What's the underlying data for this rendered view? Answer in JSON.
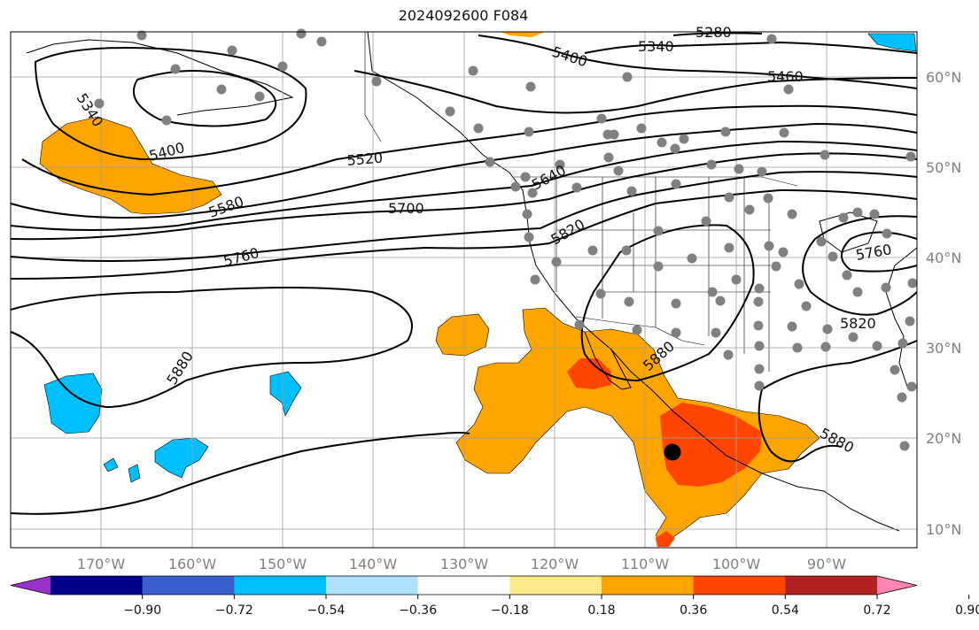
{
  "title": "2024092600 F084",
  "lon_labels": [
    "170°W",
    "160°W",
    "150°W",
    "140°W",
    "130°W",
    "120°W",
    "110°W",
    "100°W",
    "90°W"
  ],
  "lat_labels": [
    "60°N",
    "50°N",
    "40°N",
    "30°N",
    "20°N",
    "10°N"
  ],
  "contour_labels": [
    {
      "text": "5280"
    },
    {
      "text": "5340"
    },
    {
      "text": "5400"
    },
    {
      "text": "5460"
    },
    {
      "text": "5340"
    },
    {
      "text": "5400"
    },
    {
      "text": "5520"
    },
    {
      "text": "5580"
    },
    {
      "text": "5640"
    },
    {
      "text": "5700"
    },
    {
      "text": "5760"
    },
    {
      "text": "5820"
    },
    {
      "text": "5880"
    },
    {
      "text": "5880"
    },
    {
      "text": "5880"
    },
    {
      "text": "5760"
    },
    {
      "text": "5820"
    }
  ],
  "colorbar": {
    "colors": [
      "#9932cc",
      "#00008b",
      "#3a5fcd",
      "#00bfff",
      "#b0e2ff",
      "#ffffff",
      "#fdea8a",
      "#ffa500",
      "#ff4500",
      "#b22222",
      "#ff86b2"
    ],
    "tick_labels": [
      "−0.90",
      "−0.72",
      "−0.54",
      "−0.36",
      "−0.18",
      "0.18",
      "0.36",
      "0.54",
      "0.72",
      "0.90"
    ]
  },
  "colors": {
    "orange": "#ffa500",
    "red": "#ff4500",
    "darkred": "#b22222",
    "blue": "#00bfff",
    "station": "#808080"
  }
}
